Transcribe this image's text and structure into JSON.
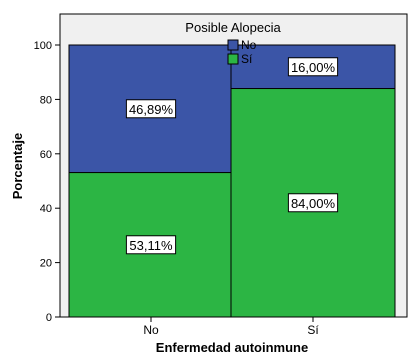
{
  "chart_data": {
    "type": "bar",
    "stacked": true,
    "title": "",
    "xlabel": "Enfermedad autoinmune",
    "ylabel": "Porcentaje",
    "categories": [
      "No",
      "Sí"
    ],
    "ylim": [
      0,
      100
    ],
    "yticks": [
      0,
      20,
      40,
      60,
      80,
      100
    ],
    "grid": false,
    "legend": {
      "title": "Posible Alopecia",
      "placement": "top-center"
    },
    "series": [
      {
        "name": "Sí",
        "color": "#2cb544",
        "values": [
          53.11,
          84.0
        ],
        "labels": [
          "53,11%",
          "84,00%"
        ]
      },
      {
        "name": "No",
        "color": "#3b55a7",
        "values": [
          46.89,
          16.0
        ],
        "labels": [
          "46,89%",
          "16,00%"
        ]
      }
    ],
    "legend_order": [
      "No",
      "Sí"
    ],
    "plot_background": "#f0f0f0"
  }
}
